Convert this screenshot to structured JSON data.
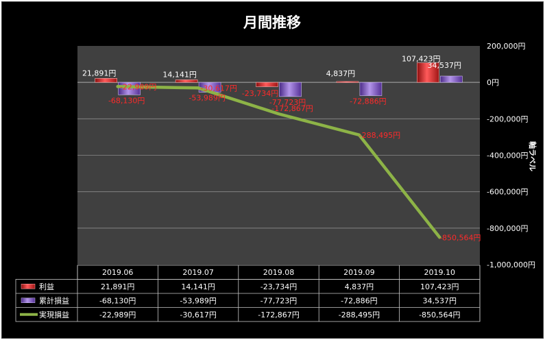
{
  "chart_data": {
    "type": "bar",
    "title": "月間推移",
    "categories": [
      "2019.06",
      "2019.07",
      "2019.08",
      "2019.09",
      "2019.10"
    ],
    "series": [
      {
        "name": "利益",
        "type": "bar",
        "color": "#e03030",
        "values": [
          21891,
          14141,
          -23734,
          4837,
          107423
        ],
        "labels": [
          "21,891円",
          "14,141円",
          "-23,734円",
          "4,837円",
          "107,423円"
        ]
      },
      {
        "name": "累計損益",
        "type": "bar",
        "color": "#8a5cc8",
        "values": [
          -68130,
          -53989,
          -77723,
          -72886,
          34537
        ],
        "labels": [
          "-68,130円",
          "-53,989円",
          "-77,723円",
          "-72,886円",
          "34,537円"
        ]
      },
      {
        "name": "実現損益",
        "type": "line",
        "color": "#8db347",
        "values": [
          -22989,
          -30617,
          -172867,
          -288495,
          -850564
        ],
        "labels": [
          "-22,989円",
          "-30,617円",
          "-172,867円",
          "-288,495円",
          "-850,564円"
        ]
      }
    ],
    "yaxis": {
      "label": "軸ラベル",
      "ylim": [
        -1000000,
        200000
      ],
      "ticks": [
        200000,
        0,
        -200000,
        -400000,
        -600000,
        -800000,
        -1000000
      ],
      "tick_labels": [
        "200,000円",
        "0円",
        "-200,000円",
        "-400,000円",
        "-600,000円",
        "-800,000円",
        "-1,000,000円"
      ]
    },
    "grid": true,
    "legend": "data-table-bottom",
    "plot_background": "#404040",
    "background": "#000000"
  }
}
